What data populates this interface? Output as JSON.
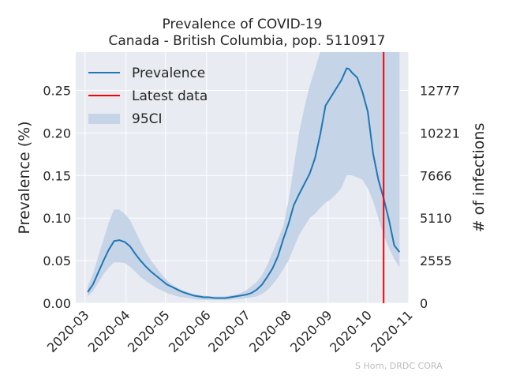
{
  "chart_data": {
    "type": "line",
    "title": "Prevalence of COVID-19",
    "subtitle": "Canada - British Columbia, pop. 5110917",
    "xlabel": "",
    "ylabel": "Prevalence (%)",
    "y2label": "# of infections",
    "credit": "S Horn, DRDC CORA",
    "x_ticks": [
      "2020-03",
      "2020-04",
      "2020-05",
      "2020-06",
      "2020-07",
      "2020-08",
      "2020-09",
      "2020-10",
      "2020-11"
    ],
    "x_tick_dates": [
      "2020-03-01",
      "2020-04-01",
      "2020-05-01",
      "2020-06-01",
      "2020-07-01",
      "2020-08-01",
      "2020-09-01",
      "2020-10-01",
      "2020-11-01"
    ],
    "xlim": [
      "2020-02-23",
      "2020-11-01"
    ],
    "ylim": [
      0,
      0.295
    ],
    "y_ticks": [
      "0.00",
      "0.05",
      "0.10",
      "0.15",
      "0.20",
      "0.25"
    ],
    "y_tick_values": [
      0,
      0.05,
      0.1,
      0.15,
      0.2,
      0.25
    ],
    "y2_ticks": [
      "0",
      "2555",
      "5110",
      "7666",
      "10221",
      "12777"
    ],
    "grid": true,
    "legend_position": "top-left",
    "legend": [
      "Prevalence",
      "Latest data",
      "95CI"
    ],
    "colors": {
      "prevalence": "#1f77b4",
      "latest": "#ff0000",
      "ci": "#c6d4e8",
      "background": "#e9ebf2",
      "grid": "#ffffff"
    },
    "latest_data_date": "2020-10-13",
    "series": [
      {
        "name": "Prevalence",
        "x": [
          "2020-03-03",
          "2020-03-07",
          "2020-03-11",
          "2020-03-15",
          "2020-03-19",
          "2020-03-23",
          "2020-03-27",
          "2020-03-31",
          "2020-04-04",
          "2020-04-08",
          "2020-04-12",
          "2020-04-16",
          "2020-04-20",
          "2020-04-24",
          "2020-04-28",
          "2020-05-02",
          "2020-05-06",
          "2020-05-10",
          "2020-05-14",
          "2020-05-18",
          "2020-05-22",
          "2020-05-26",
          "2020-05-30",
          "2020-06-03",
          "2020-06-07",
          "2020-06-11",
          "2020-06-15",
          "2020-06-19",
          "2020-06-23",
          "2020-06-27",
          "2020-07-01",
          "2020-07-05",
          "2020-07-09",
          "2020-07-13",
          "2020-07-17",
          "2020-07-21",
          "2020-07-25",
          "2020-07-29",
          "2020-08-02",
          "2020-08-06",
          "2020-08-10",
          "2020-08-14",
          "2020-08-18",
          "2020-08-22",
          "2020-08-26",
          "2020-08-30",
          "2020-09-03",
          "2020-09-07",
          "2020-09-11",
          "2020-09-15",
          "2020-09-17",
          "2020-09-19",
          "2020-09-23",
          "2020-09-27",
          "2020-10-01",
          "2020-10-05",
          "2020-10-09",
          "2020-10-13",
          "2020-10-17",
          "2020-10-21",
          "2020-10-25"
        ],
        "y": [
          0.013,
          0.022,
          0.036,
          0.05,
          0.063,
          0.073,
          0.074,
          0.072,
          0.067,
          0.058,
          0.05,
          0.043,
          0.037,
          0.032,
          0.027,
          0.022,
          0.019,
          0.016,
          0.013,
          0.011,
          0.009,
          0.008,
          0.007,
          0.007,
          0.006,
          0.006,
          0.006,
          0.007,
          0.008,
          0.009,
          0.01,
          0.012,
          0.016,
          0.022,
          0.031,
          0.041,
          0.055,
          0.075,
          0.093,
          0.115,
          0.128,
          0.14,
          0.152,
          0.17,
          0.198,
          0.232,
          0.242,
          0.252,
          0.262,
          0.276,
          0.275,
          0.271,
          0.265,
          0.248,
          0.225,
          0.176,
          0.145,
          0.123,
          0.098,
          0.068,
          0.06
        ]
      }
    ],
    "ci_95": {
      "x": [
        "2020-03-03",
        "2020-03-07",
        "2020-03-11",
        "2020-03-15",
        "2020-03-19",
        "2020-03-23",
        "2020-03-27",
        "2020-03-31",
        "2020-04-04",
        "2020-04-08",
        "2020-04-12",
        "2020-04-16",
        "2020-04-20",
        "2020-04-24",
        "2020-04-28",
        "2020-05-02",
        "2020-05-06",
        "2020-05-10",
        "2020-05-14",
        "2020-05-18",
        "2020-05-22",
        "2020-05-26",
        "2020-05-30",
        "2020-06-03",
        "2020-06-07",
        "2020-06-11",
        "2020-06-15",
        "2020-06-19",
        "2020-06-23",
        "2020-06-27",
        "2020-07-01",
        "2020-07-05",
        "2020-07-09",
        "2020-07-13",
        "2020-07-17",
        "2020-07-21",
        "2020-07-25",
        "2020-07-29",
        "2020-08-02",
        "2020-08-06",
        "2020-08-10",
        "2020-08-14",
        "2020-08-18",
        "2020-08-22",
        "2020-08-26",
        "2020-08-30",
        "2020-09-03",
        "2020-09-07",
        "2020-09-11",
        "2020-09-15",
        "2020-09-19",
        "2020-09-23",
        "2020-09-27",
        "2020-10-01",
        "2020-10-05",
        "2020-10-09",
        "2020-10-13",
        "2020-10-17",
        "2020-10-21",
        "2020-10-25"
      ],
      "upper": [
        0.02,
        0.034,
        0.055,
        0.075,
        0.095,
        0.11,
        0.11,
        0.105,
        0.098,
        0.085,
        0.072,
        0.06,
        0.05,
        0.042,
        0.034,
        0.027,
        0.022,
        0.018,
        0.015,
        0.013,
        0.011,
        0.01,
        0.009,
        0.008,
        0.008,
        0.008,
        0.008,
        0.009,
        0.01,
        0.012,
        0.015,
        0.02,
        0.025,
        0.033,
        0.045,
        0.06,
        0.075,
        0.09,
        0.12,
        0.16,
        0.2,
        0.23,
        0.255,
        0.275,
        0.295,
        0.295,
        0.295,
        0.295,
        0.295,
        0.295,
        0.295,
        0.295,
        0.295,
        0.295,
        0.295,
        0.295,
        0.295,
        0.295,
        0.295,
        0.295
      ],
      "lower": [
        0.008,
        0.014,
        0.024,
        0.034,
        0.042,
        0.048,
        0.048,
        0.047,
        0.043,
        0.037,
        0.031,
        0.026,
        0.022,
        0.018,
        0.015,
        0.012,
        0.01,
        0.008,
        0.007,
        0.006,
        0.005,
        0.004,
        0.004,
        0.004,
        0.004,
        0.004,
        0.004,
        0.004,
        0.005,
        0.005,
        0.006,
        0.007,
        0.008,
        0.011,
        0.015,
        0.022,
        0.03,
        0.04,
        0.05,
        0.065,
        0.08,
        0.09,
        0.1,
        0.105,
        0.112,
        0.118,
        0.122,
        0.128,
        0.135,
        0.15,
        0.15,
        0.148,
        0.145,
        0.135,
        0.12,
        0.1,
        0.08,
        0.065,
        0.052,
        0.042
      ]
    }
  }
}
